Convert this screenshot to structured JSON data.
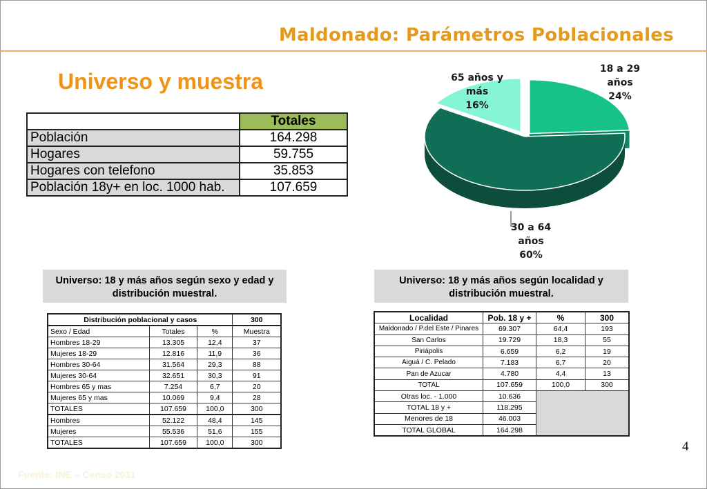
{
  "header": {
    "title": "Maldonado: Parámetros Poblacionales",
    "subtitle": "Universo y muestra"
  },
  "main_table": {
    "header": "Totales",
    "rows": [
      {
        "label": "Población",
        "value": "164.298"
      },
      {
        "label": "Hogares",
        "value": "59.755"
      },
      {
        "label": "Hogares con telefono",
        "value": "35.853"
      },
      {
        "label": "Población 18y+ en loc. 1000 hab.",
        "value": "107.659"
      }
    ]
  },
  "chart_data": {
    "type": "pie",
    "categories": [
      "18 a 29 años",
      "30 a 64 años",
      "65 años y más"
    ],
    "values": [
      24,
      60,
      16
    ],
    "labels": [
      {
        "line1": "18 a 29",
        "line2": "años",
        "line3": "24%"
      },
      {
        "line1": "30 a 64",
        "line2": "años",
        "line3": "60%"
      },
      {
        "line1": "65 años y",
        "line2": "más",
        "line3": "16%"
      }
    ],
    "colors": [
      "#17c18a",
      "#116e56",
      "#86f5d6"
    ]
  },
  "captions": {
    "left": "Universo: 18 y más años según sexo y edad y distribución muestral.",
    "right": "Universo: 18 y más años según localidad y distribución muestral."
  },
  "sex_age_table": {
    "title": "Distribución poblacional y casos",
    "title_value": "300",
    "columns": [
      "Sexo / Edad",
      "Totales",
      "%",
      "Muestra"
    ],
    "rows": [
      [
        "Hombres 18-29",
        "13.305",
        "12,4",
        "37"
      ],
      [
        "Mujeres 18-29",
        "12.816",
        "11,9",
        "36"
      ],
      [
        "Hombres 30-64",
        "31.564",
        "29,3",
        "88"
      ],
      [
        "Mujeres 30-64",
        "32.651",
        "30,3",
        "91"
      ],
      [
        "Hombres 65 y mas",
        "7.254",
        "6,7",
        "20"
      ],
      [
        "Mujeres 65 y mas",
        "10.069",
        "9,4",
        "28"
      ],
      [
        "TOTALES",
        "107.659",
        "100,0",
        "300"
      ],
      [
        "Hombres",
        "52.122",
        "48,4",
        "145"
      ],
      [
        "Mujeres",
        "55.536",
        "51,6",
        "155"
      ],
      [
        "TOTALES",
        "107.659",
        "100,0",
        "300"
      ]
    ]
  },
  "locality_table": {
    "columns": [
      "Localidad",
      "Pob. 18 y +",
      "%",
      "300"
    ],
    "rows": [
      [
        "Maldonado / P.del Este / Pinares",
        "69.307",
        "64,4",
        "193"
      ],
      [
        "San Carlos",
        "19.729",
        "18,3",
        "55"
      ],
      [
        "Piriápolis",
        "6.659",
        "6,2",
        "19"
      ],
      [
        "Aiguá / C. Pelado",
        "7.183",
        "6,7",
        "20"
      ],
      [
        "Pan de Azucar",
        "4.780",
        "4,4",
        "13"
      ],
      [
        "TOTAL",
        "107.659",
        "100,0",
        "300"
      ]
    ],
    "extra_rows": [
      [
        "Otras loc. - 1.000",
        "10.636"
      ],
      [
        "TOTAL 18 y +",
        "118.295"
      ],
      [
        "Menores de 18",
        "46.003"
      ],
      [
        "TOTAL GLOBAL",
        "164.298"
      ]
    ]
  },
  "page_number": "4",
  "footer": "Fuente: INE – Censo 2011"
}
